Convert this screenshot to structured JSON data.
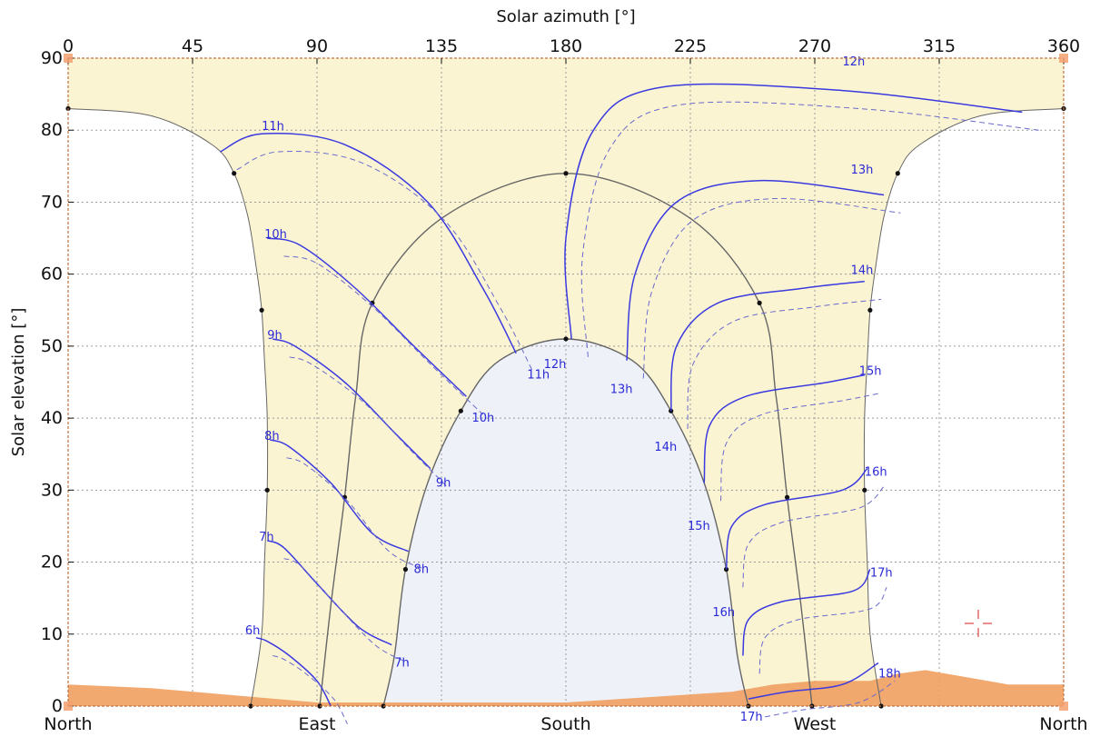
{
  "chart_data": {
    "type": "line",
    "title": "",
    "xlabel": "Solar azimuth [°]",
    "ylabel": "Solar elevation [°]",
    "xlim": [
      0,
      360
    ],
    "ylim": [
      0,
      90
    ],
    "grid": true,
    "x_ticks_top": [
      "0",
      "45",
      "90",
      "135",
      "180",
      "225",
      "270",
      "315",
      "360"
    ],
    "y_ticks": [
      "0",
      "10",
      "20",
      "30",
      "40",
      "50",
      "60",
      "70",
      "80",
      "90"
    ],
    "x_ticks_bottom": [
      {
        "label": "North",
        "x": 0
      },
      {
        "label": "East",
        "x": 90
      },
      {
        "label": "South",
        "x": 180
      },
      {
        "label": "West",
        "x": 270
      },
      {
        "label": "North",
        "x": 360
      }
    ],
    "colors": {
      "sky_band": "#fbf4d3",
      "inner_sky": "#eef1f7",
      "horizon": "#f0a060",
      "hour_lines": "#3a3ae0",
      "sun_paths": "#666666"
    },
    "sun_paths": [
      {
        "name": "summer",
        "points": [
          [
            0,
            83
          ],
          [
            30,
            82
          ],
          [
            52,
            78
          ],
          [
            60,
            74
          ],
          [
            65,
            68
          ],
          [
            68,
            61
          ],
          [
            70,
            55
          ],
          [
            71,
            48
          ],
          [
            72,
            40
          ],
          [
            72,
            30
          ],
          [
            71,
            20
          ],
          [
            70,
            10
          ],
          [
            66,
            0
          ]
        ]
      },
      {
        "name": "equinox",
        "points": [
          [
            91,
            0
          ],
          [
            95,
            14
          ],
          [
            100,
            29
          ],
          [
            104,
            43
          ],
          [
            110,
            56
          ],
          [
            136,
            68
          ],
          [
            180,
            74
          ],
          [
            224,
            68
          ],
          [
            250,
            56
          ],
          [
            256,
            43
          ],
          [
            260,
            29
          ],
          [
            265,
            14
          ],
          [
            269,
            0
          ]
        ]
      },
      {
        "name": "winter",
        "points": [
          [
            114,
            0
          ],
          [
            118,
            7
          ],
          [
            122,
            19
          ],
          [
            130,
            31
          ],
          [
            142,
            41
          ],
          [
            156,
            48
          ],
          [
            180,
            51
          ],
          [
            204,
            48
          ],
          [
            218,
            41
          ],
          [
            230,
            31
          ],
          [
            238,
            19
          ],
          [
            242,
            7
          ],
          [
            246,
            0
          ]
        ]
      }
    ],
    "hour_lines": [
      {
        "hour": "6h",
        "label_x": 64,
        "label_y": 10,
        "points": [
          [
            68,
            9.5
          ],
          [
            72,
            9
          ],
          [
            80,
            7
          ],
          [
            90,
            3.5
          ],
          [
            95,
            0
          ]
        ]
      },
      {
        "hour": "7h",
        "label_x": 69,
        "label_y": 23,
        "points": [
          [
            72,
            23
          ],
          [
            78,
            22
          ],
          [
            90,
            17
          ],
          [
            105,
            11
          ],
          [
            117,
            8.5
          ]
        ]
      },
      {
        "hour": "8h",
        "label_x": 71,
        "label_y": 37,
        "points": [
          [
            73,
            37
          ],
          [
            80,
            36
          ],
          [
            95,
            31
          ],
          [
            110,
            24
          ],
          [
            123,
            21.5
          ]
        ]
      },
      {
        "hour": "9h",
        "label_x": 72,
        "label_y": 51,
        "points": [
          [
            74,
            51
          ],
          [
            82,
            50
          ],
          [
            100,
            45
          ],
          [
            118,
            38
          ],
          [
            131,
            33
          ]
        ]
      },
      {
        "hour": "10h",
        "label_x": 71,
        "label_y": 65,
        "points": [
          [
            72,
            65
          ],
          [
            84,
            64
          ],
          [
            104,
            58
          ],
          [
            125,
            50
          ],
          [
            144,
            43
          ]
        ]
      },
      {
        "hour": "11h",
        "label_x": 70,
        "label_y": 80,
        "points": [
          [
            55,
            77
          ],
          [
            70,
            79.5
          ],
          [
            100,
            78
          ],
          [
            130,
            70
          ],
          [
            150,
            58
          ],
          [
            162,
            49
          ]
        ]
      },
      {
        "hour": "12h",
        "label_x": 280,
        "label_y": 89,
        "points": [
          [
            182,
            51
          ],
          [
            180,
            65
          ],
          [
            190,
            80
          ],
          [
            215,
            86
          ],
          [
            280,
            85.5
          ],
          [
            345,
            82.5
          ]
        ]
      },
      {
        "hour": "13h",
        "label_x": 283,
        "label_y": 74,
        "points": [
          [
            202,
            48
          ],
          [
            205,
            60
          ],
          [
            220,
            70
          ],
          [
            250,
            73
          ],
          [
            295,
            71
          ]
        ]
      },
      {
        "hour": "14h",
        "label_x": 283,
        "label_y": 60,
        "points": [
          [
            218,
            41
          ],
          [
            220,
            50
          ],
          [
            235,
            56
          ],
          [
            265,
            58
          ],
          [
            288,
            59
          ]
        ]
      },
      {
        "hour": "15h",
        "label_x": 286,
        "label_y": 46,
        "points": [
          [
            230,
            31
          ],
          [
            232,
            39
          ],
          [
            245,
            43
          ],
          [
            275,
            45
          ],
          [
            288,
            46
          ]
        ]
      },
      {
        "hour": "16h",
        "label_x": 288,
        "label_y": 32,
        "points": [
          [
            238,
            19
          ],
          [
            240,
            25
          ],
          [
            252,
            28
          ],
          [
            280,
            30
          ],
          [
            289,
            33
          ]
        ]
      },
      {
        "hour": "17h",
        "label_x": 290,
        "label_y": 18,
        "points": [
          [
            244,
            7
          ],
          [
            246,
            12
          ],
          [
            258,
            14.5
          ],
          [
            284,
            16
          ],
          [
            290,
            19
          ]
        ]
      },
      {
        "hour": "18h",
        "label_x": 293,
        "label_y": 4,
        "points": [
          [
            246,
            1
          ],
          [
            260,
            2
          ],
          [
            280,
            3
          ],
          [
            293,
            6
          ]
        ]
      }
    ],
    "winter_hour_labels": [
      {
        "label": "7h",
        "x": 118,
        "y": 7
      },
      {
        "label": "8h",
        "x": 125,
        "y": 20
      },
      {
        "label": "9h",
        "x": 133,
        "y": 32
      },
      {
        "label": "10h",
        "x": 146,
        "y": 41
      },
      {
        "label": "11h",
        "x": 166,
        "y": 47
      },
      {
        "label": "12h",
        "x": 172,
        "y": 48.5
      },
      {
        "label": "13h",
        "x": 196,
        "y": 45
      },
      {
        "label": "14h",
        "x": 212,
        "y": 37
      },
      {
        "label": "15h",
        "x": 224,
        "y": 26
      },
      {
        "label": "16h",
        "x": 233,
        "y": 14
      },
      {
        "label": "17h",
        "x": 243,
        "y": -0.5
      }
    ],
    "horizon": [
      [
        0,
        3
      ],
      [
        30,
        2.5
      ],
      [
        60,
        1.5
      ],
      [
        90,
        0.5
      ],
      [
        180,
        0.5
      ],
      [
        240,
        2
      ],
      [
        255,
        3
      ],
      [
        270,
        3.5
      ],
      [
        290,
        3.5
      ],
      [
        300,
        4.5
      ],
      [
        310,
        5
      ],
      [
        325,
        4
      ],
      [
        340,
        3
      ],
      [
        360,
        3
      ]
    ]
  }
}
